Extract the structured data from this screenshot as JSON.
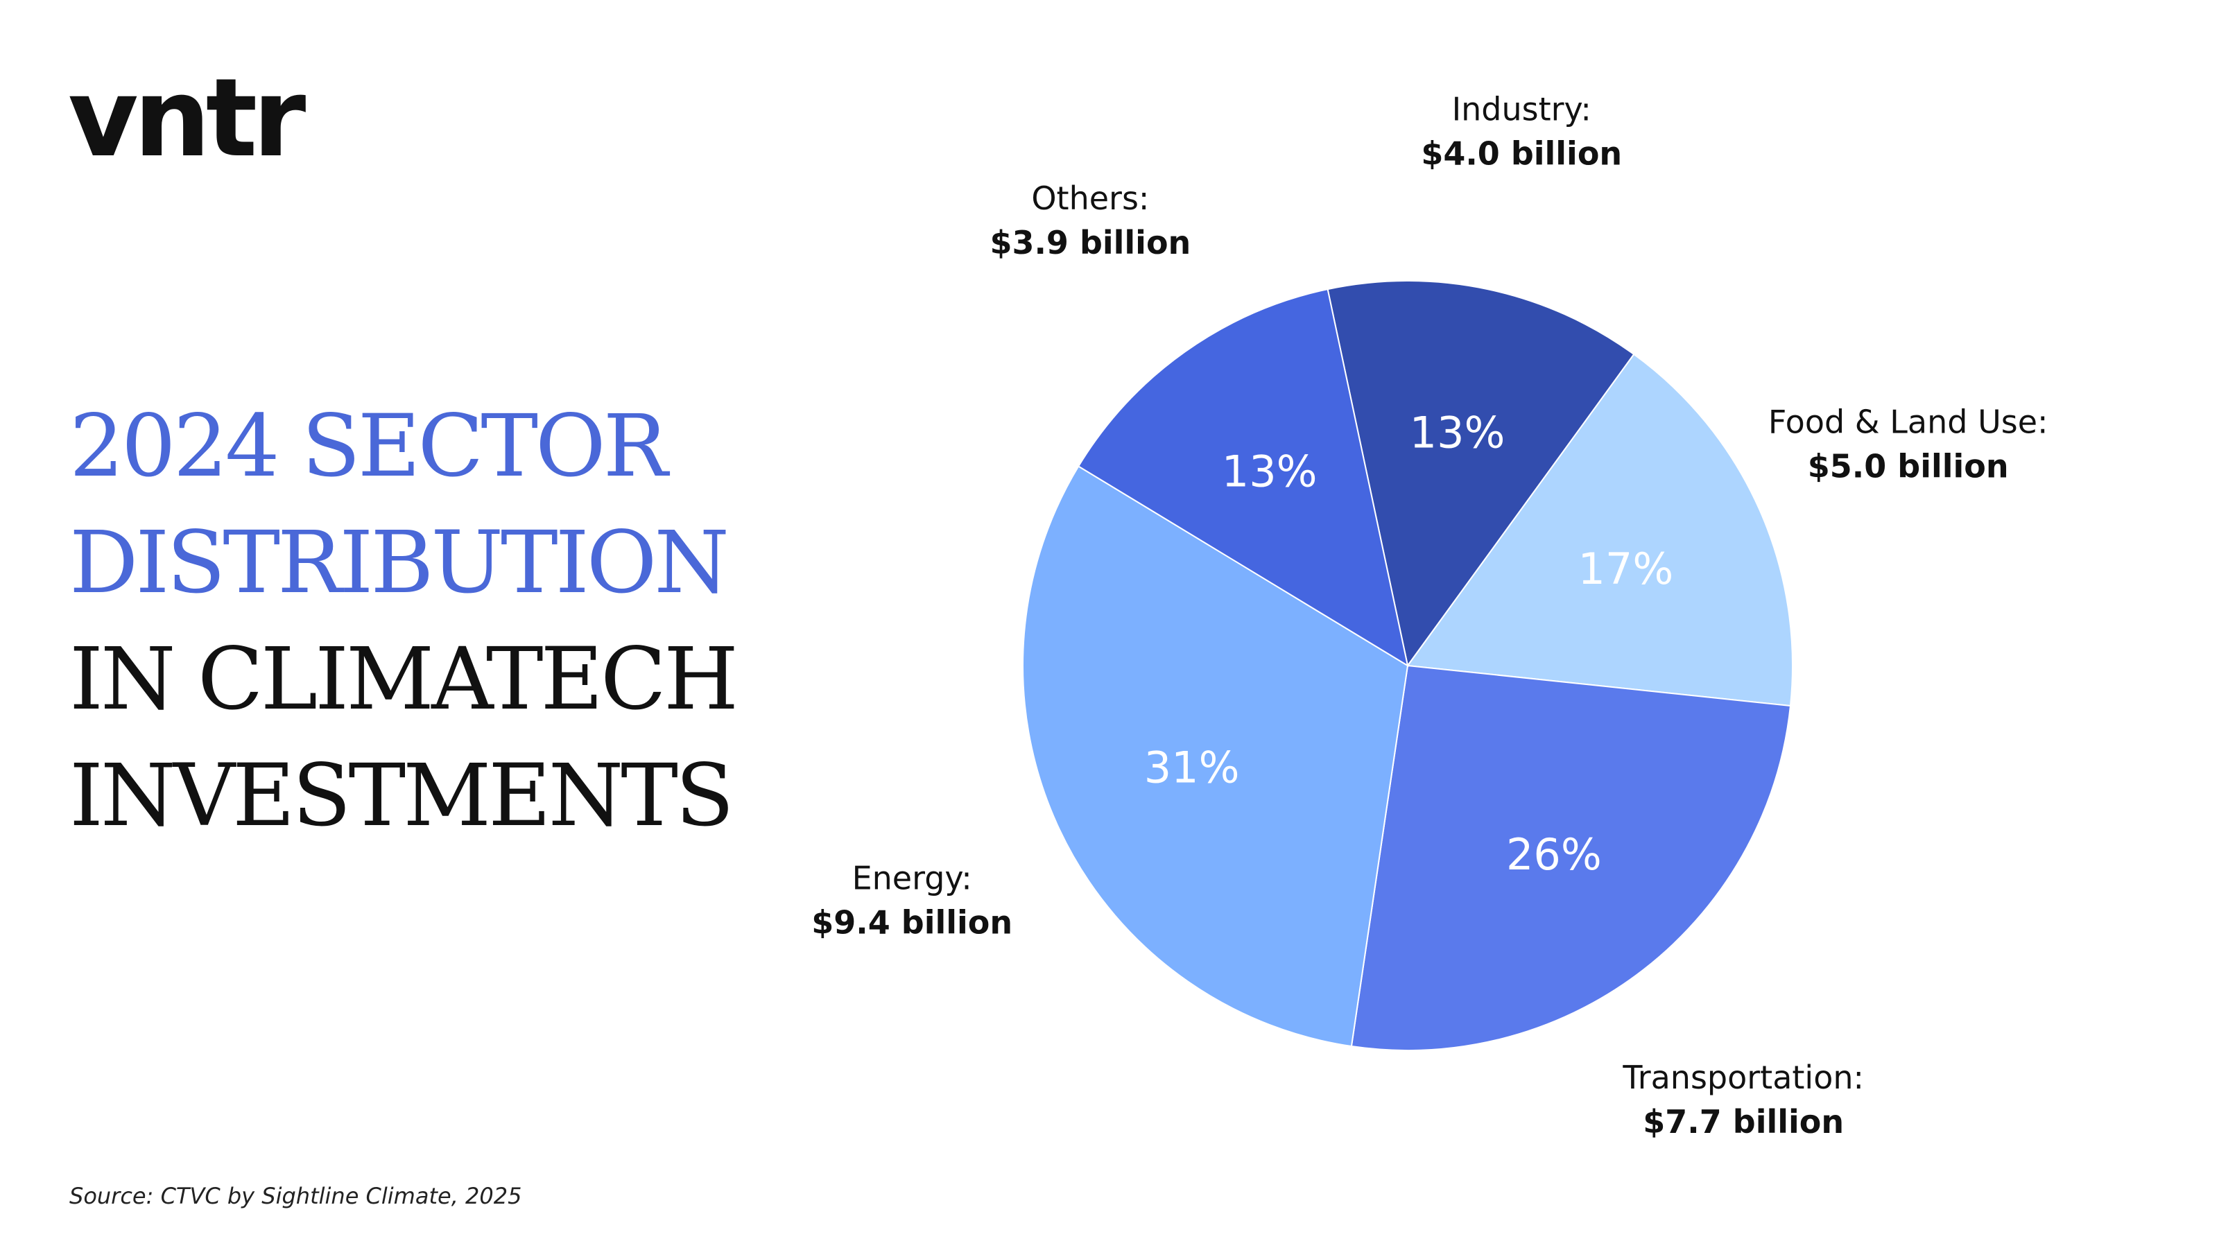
{
  "brand": {
    "logo_text": "vntr"
  },
  "title_lines": [
    {
      "text": "2024 SECTOR",
      "style": "accent"
    },
    {
      "text": "DISTRIBUTION",
      "style": "accent"
    },
    {
      "text": "IN CLIMATECH",
      "style": "dark"
    },
    {
      "text": "INVESTMENTS",
      "style": "dark"
    }
  ],
  "source": "Source: CTVC by Sightline Climate, 2025",
  "colors": {
    "accent": "#4a68d8",
    "text": "#111111"
  },
  "chart_data": {
    "type": "pie",
    "title": "",
    "slices": [
      {
        "name": "Industry:",
        "value_label": "$4.0 billion",
        "value": 4.0,
        "percent_label": "13%",
        "percent": 13,
        "color": "#324dae"
      },
      {
        "name": "Food & Land Use:",
        "value_label": "$5.0 billion",
        "value": 5.0,
        "percent_label": "17%",
        "percent": 17,
        "color": "#add5ff"
      },
      {
        "name": "Transportation:",
        "value_label": "$7.7 billion",
        "value": 7.7,
        "percent_label": "26%",
        "percent": 26,
        "color": "#5a7aec"
      },
      {
        "name": "Energy:",
        "value_label": "$9.4 billion",
        "value": 9.4,
        "percent_label": "31%",
        "percent": 31,
        "color": "#7cb0ff"
      },
      {
        "name": "Others:",
        "value_label": "$3.9 billion",
        "value": 3.9,
        "percent_label": "13%",
        "percent": 13,
        "color": "#4566e0"
      }
    ],
    "start_angle_deg": -12,
    "direction": "clockwise",
    "legend": "none"
  }
}
